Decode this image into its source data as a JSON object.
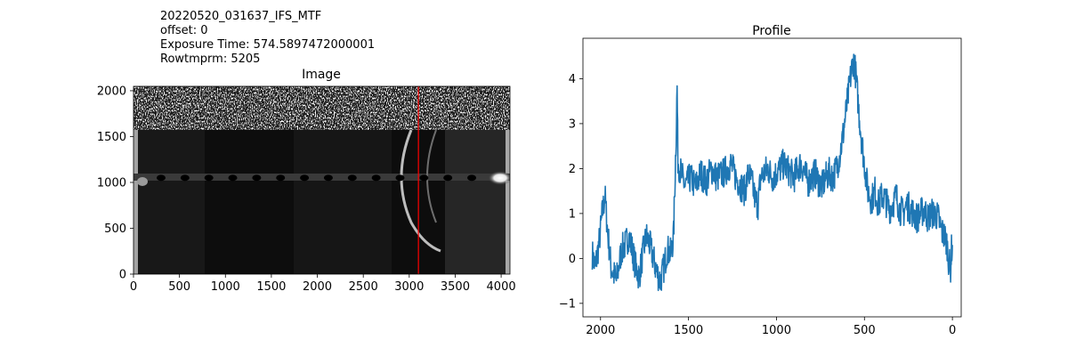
{
  "header": {
    "lines": [
      "20220520_031637_IFS_MTF",
      "offset: 0",
      "Exposure Time: 574.5897472000001",
      "Rowtmprm: 5205"
    ]
  },
  "chart_data": [
    {
      "type": "heatmap",
      "title": "Image",
      "xlabel": "",
      "ylabel": "",
      "xlim": [
        0,
        4096
      ],
      "ylim": [
        0,
        2048
      ],
      "xticks": [
        0,
        500,
        1000,
        1500,
        2000,
        2500,
        3000,
        3500,
        4000
      ],
      "yticks": [
        0,
        500,
        1000,
        1500,
        2000
      ],
      "colormap": "gray",
      "marker_line": {
        "x": 3100,
        "color": "#ff0000"
      },
      "features": {
        "noisy_band_rows": [
          1560,
          2048
        ],
        "bright_spot": {
          "x": 4000,
          "y": 1050
        },
        "trace_row": 1050,
        "arc_center_x": 2950
      }
    },
    {
      "type": "line",
      "title": "Profile",
      "xlabel": "",
      "ylabel": "",
      "xlim": [
        2100,
        -50
      ],
      "ylim": [
        -1.3,
        4.9
      ],
      "xticks": [
        2000,
        1500,
        1000,
        500,
        0
      ],
      "yticks": [
        -1,
        0,
        1,
        2,
        3,
        4
      ],
      "x_inverted": true,
      "series": [
        {
          "color": "#1f77b4",
          "points": [
            [
              2047,
              0.1
            ],
            [
              2030,
              -0.2
            ],
            [
              2010,
              0.3
            ],
            [
              1990,
              1.0
            ],
            [
              1975,
              1.4
            ],
            [
              1960,
              0.6
            ],
            [
              1940,
              -0.2
            ],
            [
              1910,
              -0.5
            ],
            [
              1880,
              0.2
            ],
            [
              1860,
              0.3
            ],
            [
              1840,
              0.5
            ],
            [
              1820,
              0.2
            ],
            [
              1800,
              -0.2
            ],
            [
              1780,
              -0.4
            ],
            [
              1760,
              0.1
            ],
            [
              1740,
              0.5
            ],
            [
              1720,
              0.3
            ],
            [
              1700,
              0.0
            ],
            [
              1680,
              -0.3
            ],
            [
              1660,
              -0.5
            ],
            [
              1640,
              -0.2
            ],
            [
              1620,
              0.2
            ],
            [
              1600,
              0.1
            ],
            [
              1585,
              0.5
            ],
            [
              1570,
              2.8
            ],
            [
              1565,
              3.8
            ],
            [
              1560,
              2.2
            ],
            [
              1550,
              2.0
            ],
            [
              1520,
              1.6
            ],
            [
              1490,
              1.8
            ],
            [
              1460,
              1.6
            ],
            [
              1430,
              1.9
            ],
            [
              1400,
              1.7
            ],
            [
              1370,
              2.0
            ],
            [
              1340,
              1.8
            ],
            [
              1300,
              1.9
            ],
            [
              1260,
              2.1
            ],
            [
              1230,
              1.8
            ],
            [
              1200,
              1.6
            ],
            [
              1180,
              1.5
            ],
            [
              1160,
              1.9
            ],
            [
              1140,
              1.7
            ],
            [
              1120,
              1.3
            ],
            [
              1105,
              1.2
            ],
            [
              1090,
              1.8
            ],
            [
              1070,
              1.9
            ],
            [
              1050,
              2.0
            ],
            [
              1020,
              1.8
            ],
            [
              1000,
              1.9
            ],
            [
              980,
              2.0
            ],
            [
              960,
              2.1
            ],
            [
              940,
              2.0
            ],
            [
              920,
              1.9
            ],
            [
              900,
              1.8
            ],
            [
              880,
              2.0
            ],
            [
              860,
              2.1
            ],
            [
              840,
              1.9
            ],
            [
              820,
              1.7
            ],
            [
              800,
              1.8
            ],
            [
              780,
              1.9
            ],
            [
              760,
              1.7
            ],
            [
              740,
              1.6
            ],
            [
              720,
              1.8
            ],
            [
              700,
              1.9
            ],
            [
              680,
              1.8
            ],
            [
              660,
              2.0
            ],
            [
              640,
              2.3
            ],
            [
              620,
              2.8
            ],
            [
              600,
              3.4
            ],
            [
              580,
              4.0
            ],
            [
              565,
              4.4
            ],
            [
              555,
              4.3
            ],
            [
              545,
              3.9
            ],
            [
              530,
              3.2
            ],
            [
              515,
              2.6
            ],
            [
              500,
              2.1
            ],
            [
              480,
              1.5
            ],
            [
              460,
              1.3
            ],
            [
              440,
              1.5
            ],
            [
              420,
              1.2
            ],
            [
              400,
              1.4
            ],
            [
              380,
              1.3
            ],
            [
              360,
              1.1
            ],
            [
              340,
              1.2
            ],
            [
              320,
              1.4
            ],
            [
              300,
              1.1
            ],
            [
              280,
              1.0
            ],
            [
              260,
              1.2
            ],
            [
              240,
              1.1
            ],
            [
              220,
              1.0
            ],
            [
              200,
              0.9
            ],
            [
              180,
              1.0
            ],
            [
              160,
              1.1
            ],
            [
              140,
              0.9
            ],
            [
              120,
              1.0
            ],
            [
              100,
              1.0
            ],
            [
              80,
              0.9
            ],
            [
              60,
              0.6
            ],
            [
              45,
              0.5
            ],
            [
              30,
              0.3
            ],
            [
              20,
              -0.1
            ],
            [
              10,
              -0.2
            ],
            [
              5,
              0.2
            ],
            [
              0,
              0.3
            ]
          ]
        }
      ]
    }
  ]
}
